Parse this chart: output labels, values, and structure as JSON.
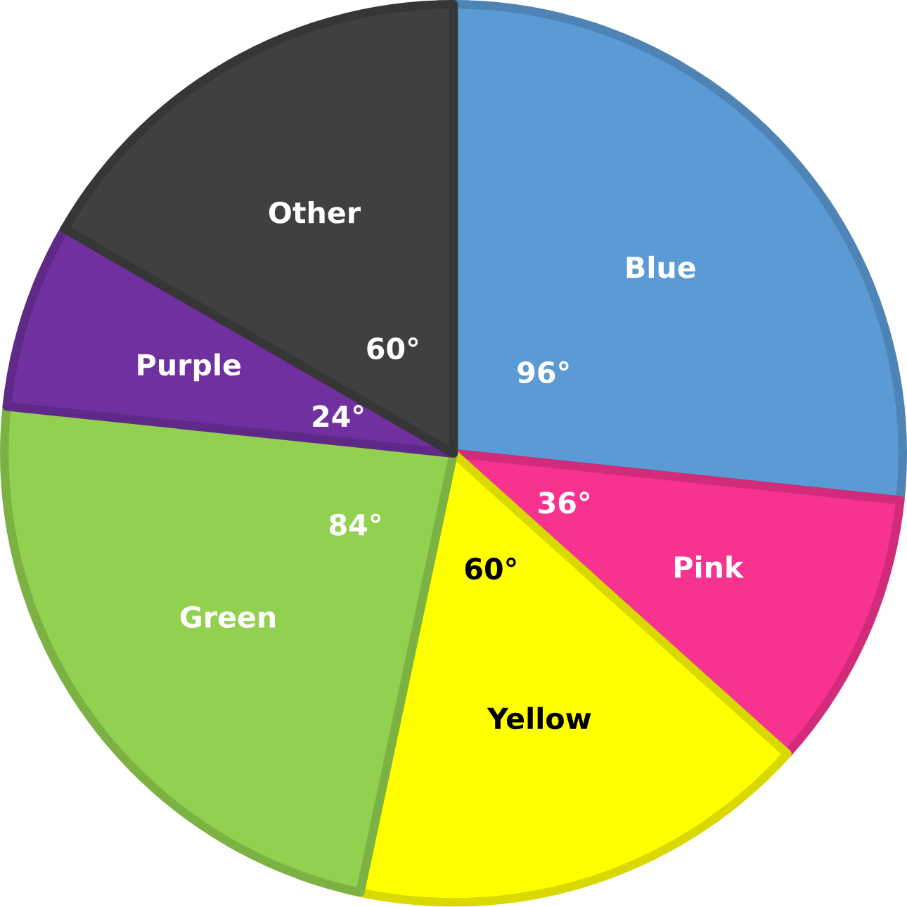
{
  "chart_data": {
    "type": "pie",
    "categories": [
      "Blue",
      "Pink",
      "Yellow",
      "Green",
      "Purple",
      "Other"
    ],
    "values": [
      96,
      36,
      60,
      84,
      24,
      60
    ],
    "value_labels": [
      "96°",
      "36°",
      "60°",
      "84°",
      "24°",
      "60°"
    ],
    "colors": [
      "#5b9bd5",
      "#f7338f",
      "#ffff00",
      "#92d050",
      "#7030a0",
      "#404040"
    ]
  }
}
